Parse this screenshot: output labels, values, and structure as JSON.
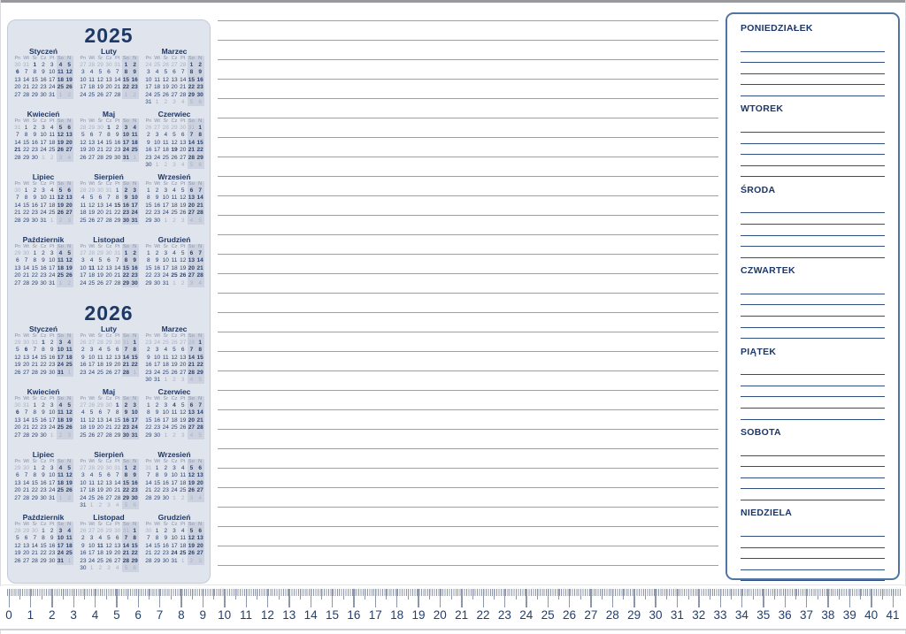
{
  "left_calendar": {
    "weekday_headers": [
      "Pn",
      "Wt",
      "Śr",
      "Cz",
      "Pt",
      "So",
      "N"
    ],
    "dec_prev_year_days": 31,
    "years": [
      {
        "label": "2025",
        "months": [
          {
            "name": "Styczeń",
            "start": 2,
            "days": 31,
            "holidays": [
              1,
              6
            ]
          },
          {
            "name": "Luty",
            "start": 5,
            "days": 28,
            "holidays": []
          },
          {
            "name": "Marzec",
            "start": 5,
            "days": 31,
            "holidays": []
          },
          {
            "name": "Kwiecień",
            "start": 1,
            "days": 30,
            "holidays": [
              20,
              21
            ]
          },
          {
            "name": "Maj",
            "start": 3,
            "days": 31,
            "holidays": [
              1,
              3
            ]
          },
          {
            "name": "Czerwiec",
            "start": 6,
            "days": 30,
            "holidays": [
              8,
              19
            ]
          },
          {
            "name": "Lipiec",
            "start": 1,
            "days": 31,
            "holidays": []
          },
          {
            "name": "Sierpień",
            "start": 4,
            "days": 31,
            "holidays": [
              15
            ]
          },
          {
            "name": "Wrzesień",
            "start": 0,
            "days": 30,
            "holidays": []
          },
          {
            "name": "Październik",
            "start": 2,
            "days": 31,
            "holidays": []
          },
          {
            "name": "Listopad",
            "start": 5,
            "days": 30,
            "holidays": [
              1,
              11
            ]
          },
          {
            "name": "Grudzień",
            "start": 0,
            "days": 31,
            "holidays": [
              25,
              26
            ]
          }
        ]
      },
      {
        "label": "2026",
        "months": [
          {
            "name": "Styczeń",
            "start": 3,
            "days": 31,
            "holidays": [
              1,
              6
            ]
          },
          {
            "name": "Luty",
            "start": 6,
            "days": 28,
            "holidays": []
          },
          {
            "name": "Marzec",
            "start": 6,
            "days": 31,
            "holidays": []
          },
          {
            "name": "Kwiecień",
            "start": 2,
            "days": 30,
            "holidays": [
              5,
              6
            ]
          },
          {
            "name": "Maj",
            "start": 4,
            "days": 31,
            "holidays": [
              1,
              3,
              24
            ]
          },
          {
            "name": "Czerwiec",
            "start": 0,
            "days": 30,
            "holidays": [
              4
            ]
          },
          {
            "name": "Lipiec",
            "start": 2,
            "days": 31,
            "holidays": []
          },
          {
            "name": "Sierpień",
            "start": 5,
            "days": 31,
            "holidays": [
              15
            ]
          },
          {
            "name": "Wrzesień",
            "start": 1,
            "days": 30,
            "holidays": []
          },
          {
            "name": "Październik",
            "start": 3,
            "days": 31,
            "holidays": []
          },
          {
            "name": "Listopad",
            "start": 6,
            "days": 30,
            "holidays": [
              1,
              11
            ]
          },
          {
            "name": "Grudzień",
            "start": 1,
            "days": 31,
            "holidays": [
              24,
              25,
              26
            ]
          }
        ]
      }
    ]
  },
  "notes_area": {
    "line_count": 31
  },
  "weekly_planner": {
    "days": [
      "PONIEDZIAŁEK",
      "WTOREK",
      "ŚRODA",
      "CZWARTEK",
      "PIĄTEK",
      "SOBOTA",
      "NIEDZIELA"
    ],
    "lines_per_day": 6
  },
  "ruler": {
    "labels": [
      "0",
      "1",
      "2",
      "3",
      "4",
      "5",
      "6",
      "7",
      "8",
      "9",
      "10",
      "11",
      "12",
      "13",
      "14",
      "15",
      "16",
      "17",
      "18",
      "19",
      "20",
      "21",
      "22",
      "23",
      "24",
      "25",
      "26",
      "27",
      "28",
      "29",
      "30",
      "31",
      "32",
      "33",
      "34",
      "35",
      "36",
      "37",
      "38",
      "39",
      "40",
      "41"
    ]
  },
  "colors": {
    "navy": "#1d3766",
    "day_number": "#2b436f",
    "muted_day": "#a9b1c3",
    "weekend_band": "#ccd2df",
    "panel_bg": "#e0e4ed",
    "panel_border": "#c3cad8",
    "note_line": "#98a1b4",
    "planner_border": "#4f76a3",
    "planner_line": "#2e4f80",
    "ruler_tick": "#8e97a9",
    "ruler_number": "#22406e"
  }
}
